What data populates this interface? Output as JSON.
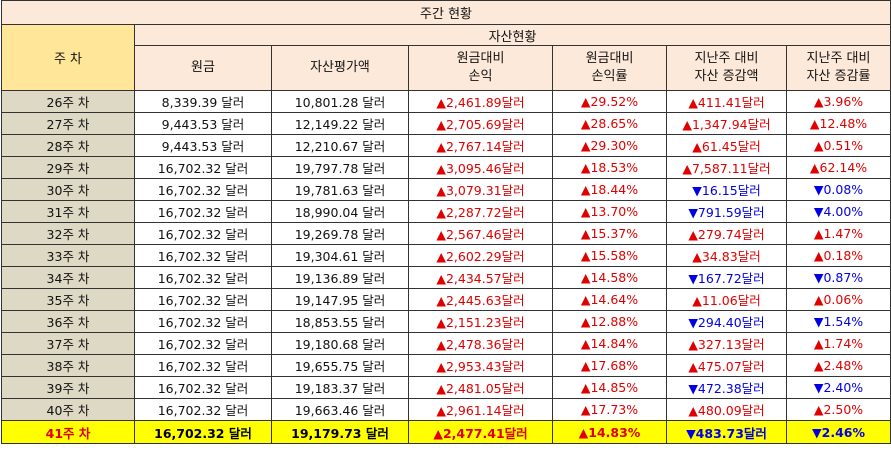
{
  "title": "주간 현황",
  "headers": {
    "week": "주 차",
    "group": "자산현황",
    "principal": "원금",
    "valuation": "자산평가액",
    "pl_line1": "원금대비",
    "pl_line2": "손익",
    "plr_line1": "원금대비",
    "plr_line2": "손익률",
    "wd_line1": "지난주 대비",
    "wd_line2": "자산 증감액",
    "wr_line1": "지난주 대비",
    "wr_line2": "자산 증감률"
  },
  "colors": {
    "up": "#e00000",
    "down": "#0000e0",
    "highlight": "#ffff00",
    "week_bg": "#ddd9c4",
    "header_bg": "#fde9d9"
  },
  "rows": [
    {
      "week": "26주 차",
      "principal": "8,339.39 달러",
      "valuation": "10,801.28 달러",
      "pl": "▲2,461.89달러",
      "plr": "▲29.52%",
      "wd": "▲411.41달러",
      "wd_dir": "up",
      "wr": "▲3.96%",
      "wr_dir": "up"
    },
    {
      "week": "27주 차",
      "principal": "9,443.53 달러",
      "valuation": "12,149.22 달러",
      "pl": "▲2,705.69달러",
      "plr": "▲28.65%",
      "wd": "▲1,347.94달러",
      "wd_dir": "up",
      "wr": "▲12.48%",
      "wr_dir": "up"
    },
    {
      "week": "28주 차",
      "principal": "9,443.53 달러",
      "valuation": "12,210.67 달러",
      "pl": "▲2,767.14달러",
      "plr": "▲29.30%",
      "wd": "▲61.45달러",
      "wd_dir": "up",
      "wr": "▲0.51%",
      "wr_dir": "up"
    },
    {
      "week": "29주 차",
      "principal": "16,702.32 달러",
      "valuation": "19,797.78 달러",
      "pl": "▲3,095.46달러",
      "plr": "▲18.53%",
      "wd": "▲7,587.11달러",
      "wd_dir": "up",
      "wr": "▲62.14%",
      "wr_dir": "up"
    },
    {
      "week": "30주 차",
      "principal": "16,702.32 달러",
      "valuation": "19,781.63 달러",
      "pl": "▲3,079.31달러",
      "plr": "▲18.44%",
      "wd": "▼16.15달러",
      "wd_dir": "down",
      "wr": "▼0.08%",
      "wr_dir": "down"
    },
    {
      "week": "31주 차",
      "principal": "16,702.32 달러",
      "valuation": "18,990.04 달러",
      "pl": "▲2,287.72달러",
      "plr": "▲13.70%",
      "wd": "▼791.59달러",
      "wd_dir": "down",
      "wr": "▼4.00%",
      "wr_dir": "down"
    },
    {
      "week": "32주 차",
      "principal": "16,702.32 달러",
      "valuation": "19,269.78 달러",
      "pl": "▲2,567.46달러",
      "plr": "▲15.37%",
      "wd": "▲279.74달러",
      "wd_dir": "up",
      "wr": "▲1.47%",
      "wr_dir": "up"
    },
    {
      "week": "33주 차",
      "principal": "16,702.32 달러",
      "valuation": "19,304.61 달러",
      "pl": "▲2,602.29달러",
      "plr": "▲15.58%",
      "wd": "▲34.83달러",
      "wd_dir": "up",
      "wr": "▲0.18%",
      "wr_dir": "up"
    },
    {
      "week": "34주 차",
      "principal": "16,702.32 달러",
      "valuation": "19,136.89 달러",
      "pl": "▲2,434.57달러",
      "plr": "▲14.58%",
      "wd": "▼167.72달러",
      "wd_dir": "down",
      "wr": "▼0.87%",
      "wr_dir": "down"
    },
    {
      "week": "35주 차",
      "principal": "16,702.32 달러",
      "valuation": "19,147.95 달러",
      "pl": "▲2,445.63달러",
      "plr": "▲14.64%",
      "wd": "▲11.06달러",
      "wd_dir": "up",
      "wr": "▲0.06%",
      "wr_dir": "up"
    },
    {
      "week": "36주 차",
      "principal": "16,702.32 달러",
      "valuation": "18,853.55 달러",
      "pl": "▲2,151.23달러",
      "plr": "▲12.88%",
      "wd": "▼294.40달러",
      "wd_dir": "down",
      "wr": "▼1.54%",
      "wr_dir": "down"
    },
    {
      "week": "37주 차",
      "principal": "16,702.32 달러",
      "valuation": "19,180.68 달러",
      "pl": "▲2,478.36달러",
      "plr": "▲14.84%",
      "wd": "▲327.13달러",
      "wd_dir": "up",
      "wr": "▲1.74%",
      "wr_dir": "up"
    },
    {
      "week": "38주 차",
      "principal": "16,702.32 달러",
      "valuation": "19,655.75 달러",
      "pl": "▲2,953.43달러",
      "plr": "▲17.68%",
      "wd": "▲475.07달러",
      "wd_dir": "up",
      "wr": "▲2.48%",
      "wr_dir": "up"
    },
    {
      "week": "39주 차",
      "principal": "16,702.32 달러",
      "valuation": "19,183.37 달러",
      "pl": "▲2,481.05달러",
      "plr": "▲14.85%",
      "wd": "▼472.38달러",
      "wd_dir": "down",
      "wr": "▼2.40%",
      "wr_dir": "down"
    },
    {
      "week": "40주 차",
      "principal": "16,702.32 달러",
      "valuation": "19,663.46 달러",
      "pl": "▲2,961.14달러",
      "plr": "▲17.73%",
      "wd": "▲480.09달러",
      "wd_dir": "up",
      "wr": "▲2.50%",
      "wr_dir": "up"
    },
    {
      "week": "41주 차",
      "principal": "16,702.32 달러",
      "valuation": "19,179.73 달러",
      "pl": "▲2,477.41달러",
      "plr": "▲14.83%",
      "wd": "▼483.73달러",
      "wd_dir": "down",
      "wr": "▼2.46%",
      "wr_dir": "down"
    }
  ]
}
